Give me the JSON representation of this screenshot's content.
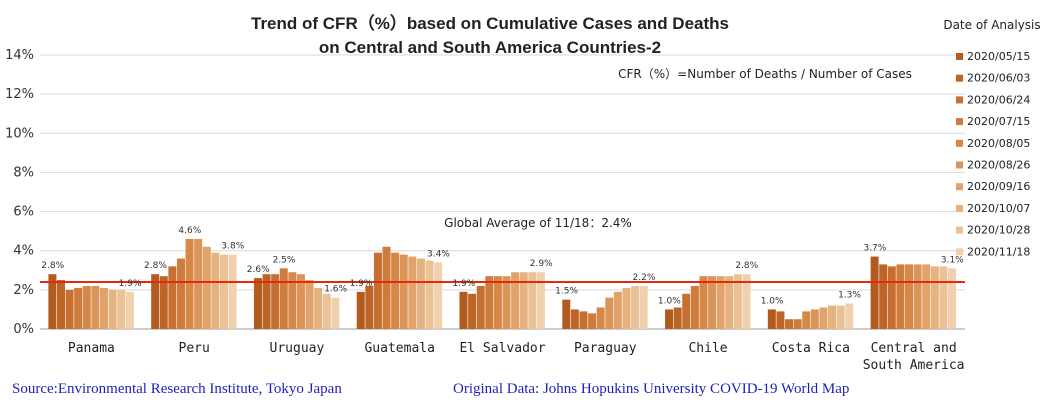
{
  "chart_data": {
    "type": "bar",
    "title_line1": "Trend of CFR（%）based on Cumulative Cases and Deaths",
    "title_line2": "on Central and South America Countries-2",
    "formula_note": "CFR（%）=Number of  Deaths / Number of Cases",
    "global_average_label": "Global Average of 11/18：2.4%",
    "global_average": 2.4,
    "legend_title": "Date of Analysis",
    "ylim": [
      0,
      14
    ],
    "yticks": [
      "0%",
      "2%",
      "4%",
      "6%",
      "8%",
      "10%",
      "12%",
      "14%"
    ],
    "ytick_values": [
      0,
      2,
      4,
      6,
      8,
      10,
      12,
      14
    ],
    "series_names": [
      "2020/05/15",
      "2020/06/03",
      "2020/06/24",
      "2020/07/15",
      "2020/08/05",
      "2020/08/26",
      "2020/09/16",
      "2020/10/07",
      "2020/10/28",
      "2020/11/18"
    ],
    "series_colors": [
      "#b35a1f",
      "#bd6427",
      "#c76f30",
      "#cf7b3b",
      "#d68848",
      "#dc9558",
      "#e1a36a",
      "#e6b27f",
      "#ebc196",
      "#f0d0ad"
    ],
    "categories": [
      {
        "name": "Panama",
        "values": [
          2.8,
          2.5,
          2.0,
          2.1,
          2.2,
          2.2,
          2.1,
          2.0,
          2.0,
          1.9
        ],
        "labels": [
          "2.8%",
          "1.9%"
        ]
      },
      {
        "name": "Peru",
        "values": [
          2.8,
          2.7,
          3.2,
          3.6,
          4.6,
          4.6,
          4.2,
          3.9,
          3.8,
          3.8
        ],
        "labels": [
          "2.8%",
          "4.6%",
          "3.8%"
        ]
      },
      {
        "name": "Uruguay",
        "values": [
          2.6,
          2.8,
          2.8,
          3.1,
          2.9,
          2.8,
          2.5,
          2.1,
          1.8,
          1.6
        ],
        "labels": [
          "2.6%",
          "2.5%",
          "1.6%"
        ]
      },
      {
        "name": "Guatemala",
        "values": [
          1.9,
          2.2,
          3.9,
          4.2,
          3.9,
          3.8,
          3.7,
          3.6,
          3.5,
          3.4
        ],
        "labels": [
          "1.9%",
          "3.4%"
        ]
      },
      {
        "name": "El Salvador",
        "values": [
          1.9,
          1.8,
          2.2,
          2.7,
          2.7,
          2.7,
          2.9,
          2.9,
          2.9,
          2.9
        ],
        "labels": [
          "1.9%",
          "2.9%"
        ]
      },
      {
        "name": "Paraguay",
        "values": [
          1.5,
          1.0,
          0.9,
          0.8,
          1.1,
          1.6,
          1.9,
          2.1,
          2.2,
          2.2
        ],
        "labels": [
          "1.5%",
          "2.2%"
        ]
      },
      {
        "name": "Chile",
        "values": [
          1.0,
          1.1,
          1.8,
          2.2,
          2.7,
          2.7,
          2.7,
          2.7,
          2.8,
          2.8
        ],
        "labels": [
          "1.0%",
          "2.8%"
        ]
      },
      {
        "name": "Costa Rica",
        "values": [
          1.0,
          0.9,
          0.5,
          0.5,
          0.9,
          1.0,
          1.1,
          1.2,
          1.2,
          1.3
        ],
        "labels": [
          "1.0%",
          "1.3%"
        ]
      },
      {
        "name": "Central and\nSouth America",
        "values": [
          3.7,
          3.3,
          3.2,
          3.3,
          3.3,
          3.3,
          3.3,
          3.2,
          3.2,
          3.1
        ],
        "labels": [
          "3.7%",
          "3.1%"
        ]
      }
    ]
  },
  "footer": {
    "source": "Source:Environmental Research Institute, Tokyo Japan",
    "original_data": "Original Data: Johns Hopukins University COVID-19 World Map"
  }
}
